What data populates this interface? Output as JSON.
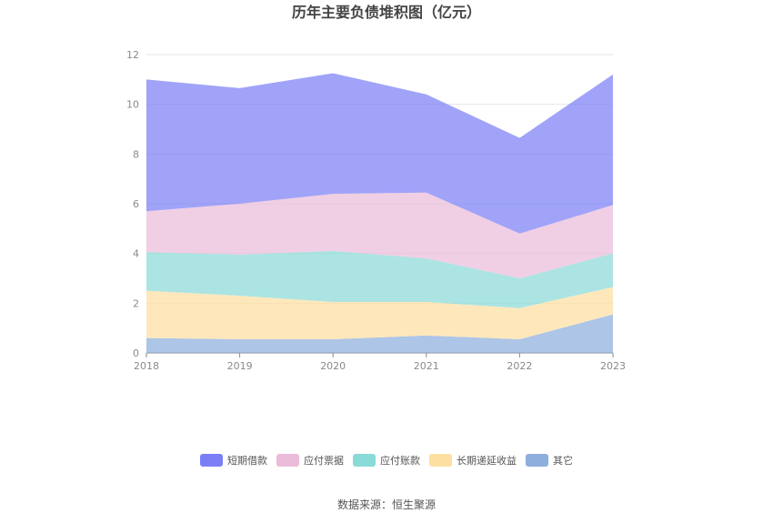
{
  "chart_data": {
    "type": "area",
    "stacked": true,
    "title": "历年主要负债堆积图（亿元）",
    "x": [
      "2018",
      "2019",
      "2020",
      "2021",
      "2022",
      "2023"
    ],
    "ylim": [
      0,
      12
    ],
    "y_ticks": [
      "0",
      "2",
      "4",
      "6",
      "8",
      "10",
      "12"
    ],
    "grid": true,
    "legend_position": "bottom",
    "series": [
      {
        "name": "其它",
        "color": "#8eaedd",
        "values": [
          0.6,
          0.55,
          0.55,
          0.7,
          0.55,
          1.55
        ]
      },
      {
        "name": "长期递延收益",
        "color": "#fddfa1",
        "values": [
          1.9,
          1.75,
          1.5,
          1.35,
          1.25,
          1.1
        ]
      },
      {
        "name": "应付账款",
        "color": "#8adad8",
        "values": [
          1.55,
          1.65,
          2.05,
          1.75,
          1.2,
          1.35
        ]
      },
      {
        "name": "应付票据",
        "color": "#eabcd9",
        "values": [
          1.65,
          2.05,
          2.3,
          2.65,
          1.8,
          1.95
        ]
      },
      {
        "name": "短期借款",
        "color": "#7b7ff5",
        "values": [
          5.3,
          4.65,
          4.85,
          3.95,
          3.85,
          5.25
        ]
      }
    ]
  },
  "legend_order": [
    "短期借款",
    "应付票据",
    "应付账款",
    "长期递延收益",
    "其它"
  ],
  "source": "数据来源：恒生聚源"
}
